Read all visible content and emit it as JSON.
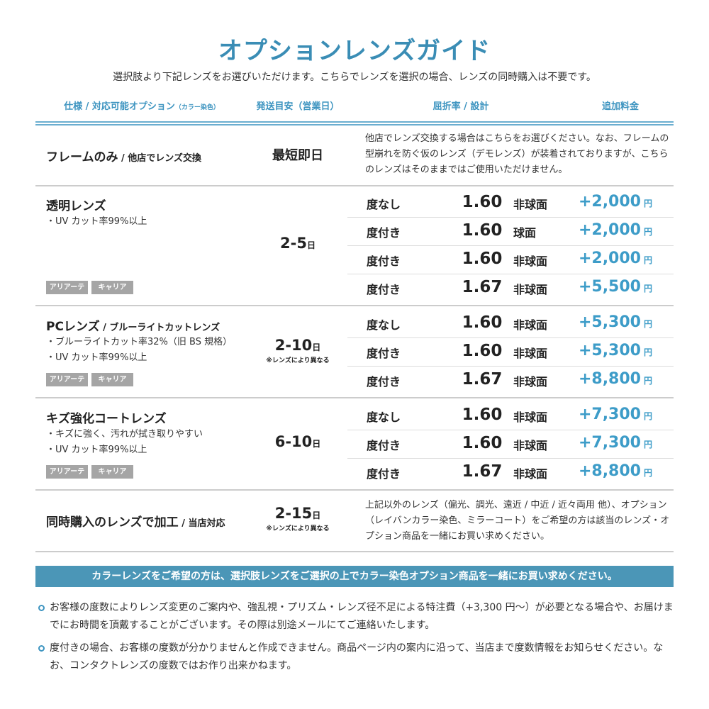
{
  "title": "オプションレンズガイド",
  "subtitle": "選択肢より下記レンズをお選びいただけます。こちらでレンズを選択の場合、レンズの同時購入は不要です。",
  "headers": {
    "spec": "仕様 / 対応可能オプション",
    "spec_small": "（カラー染色）",
    "days": "発送目安（営業日）",
    "index": "屈折率 / 設計",
    "price": "追加料金"
  },
  "frame": {
    "name": "フレームのみ",
    "sub": " / 他店でレンズ交換",
    "days": "最短即日",
    "desc": "他店でレンズ交換する場合はこちらをお選びください。なお、フレームの型崩れを防ぐ仮のレンズ（デモレンズ）が装着されておりますが、こちらのレンズはそのままではご使用いただけません。"
  },
  "sections": [
    {
      "name": "透明レンズ",
      "sub": "",
      "features": [
        "・UV カット率99%以上"
      ],
      "tags": [
        "アリアーテ",
        "キャリア"
      ],
      "days": "2-5",
      "unit": "日",
      "note": "",
      "lenses": [
        {
          "type": "度なし",
          "index": "1.60",
          "design": "非球面",
          "price": "+2,000"
        },
        {
          "type": "度付き",
          "index": "1.60",
          "design": "球面",
          "price": "+2,000"
        },
        {
          "type": "度付き",
          "index": "1.60",
          "design": "非球面",
          "price": "+2,000"
        },
        {
          "type": "度付き",
          "index": "1.67",
          "design": "非球面",
          "price": "+5,500"
        }
      ]
    },
    {
      "name": "PCレンズ",
      "sub": " / ブルーライトカットレンズ",
      "features": [
        "・ブルーライトカット率32%（旧 BS 規格）",
        "・UV カット率99%以上"
      ],
      "tags": [
        "アリアーテ",
        "キャリア"
      ],
      "days": "2-10",
      "unit": "日",
      "note": "※レンズにより異なる",
      "lenses": [
        {
          "type": "度なし",
          "index": "1.60",
          "design": "非球面",
          "price": "+5,300"
        },
        {
          "type": "度付き",
          "index": "1.60",
          "design": "非球面",
          "price": "+5,300"
        },
        {
          "type": "度付き",
          "index": "1.67",
          "design": "非球面",
          "price": "+8,800"
        }
      ]
    },
    {
      "name": "キズ強化コートレンズ",
      "sub": "",
      "features": [
        "・キズに強く、汚れが拭き取りやすい",
        "・UV カット率99%以上"
      ],
      "tags": [
        "アリアーテ",
        "キャリア"
      ],
      "days": "6-10",
      "unit": "日",
      "note": "",
      "lenses": [
        {
          "type": "度なし",
          "index": "1.60",
          "design": "非球面",
          "price": "+7,300"
        },
        {
          "type": "度付き",
          "index": "1.60",
          "design": "非球面",
          "price": "+7,300"
        },
        {
          "type": "度付き",
          "index": "1.67",
          "design": "非球面",
          "price": "+8,800"
        }
      ]
    }
  ],
  "price_unit": "円",
  "processing": {
    "name": "同時購入のレンズで加工",
    "sub": " / 当店対応",
    "days": "2-15",
    "unit": "日",
    "note": "※レンズにより異なる",
    "desc": "上記以外のレンズ（偏光、調光、遠近 / 中近 / 近々両用 他）、オプション（レイバンカラー染色、ミラーコート）をご希望の方は該当のレンズ・オプション商品を一緒にお買い求めください。"
  },
  "band": "カラーレンズをご希望の方は、選択肢レンズをご選択の上でカラー染色オプション商品を一緒にお買い求めください。",
  "notes": [
    "お客様の度数によりレンズ変更のご案内や、強乱視・プリズム・レンズ径不足による特注費（+3,300 円〜）が必要となる場合や、お届けまでにお時間を頂戴することがございます。その際は別途メールにてご連絡いたします。",
    "度付きの場合、お客様の度数が分かりませんと作成できません。商品ページ内の案内に沿って、当店まで度数情報をお知らせください。なお、コンタクトレンズの度数ではお作り出来かねます。"
  ],
  "colors": {
    "accent": "#3a8db5",
    "price": "#3d9cc8",
    "band": "#4b96b7",
    "tag": "#a5a5a5"
  }
}
